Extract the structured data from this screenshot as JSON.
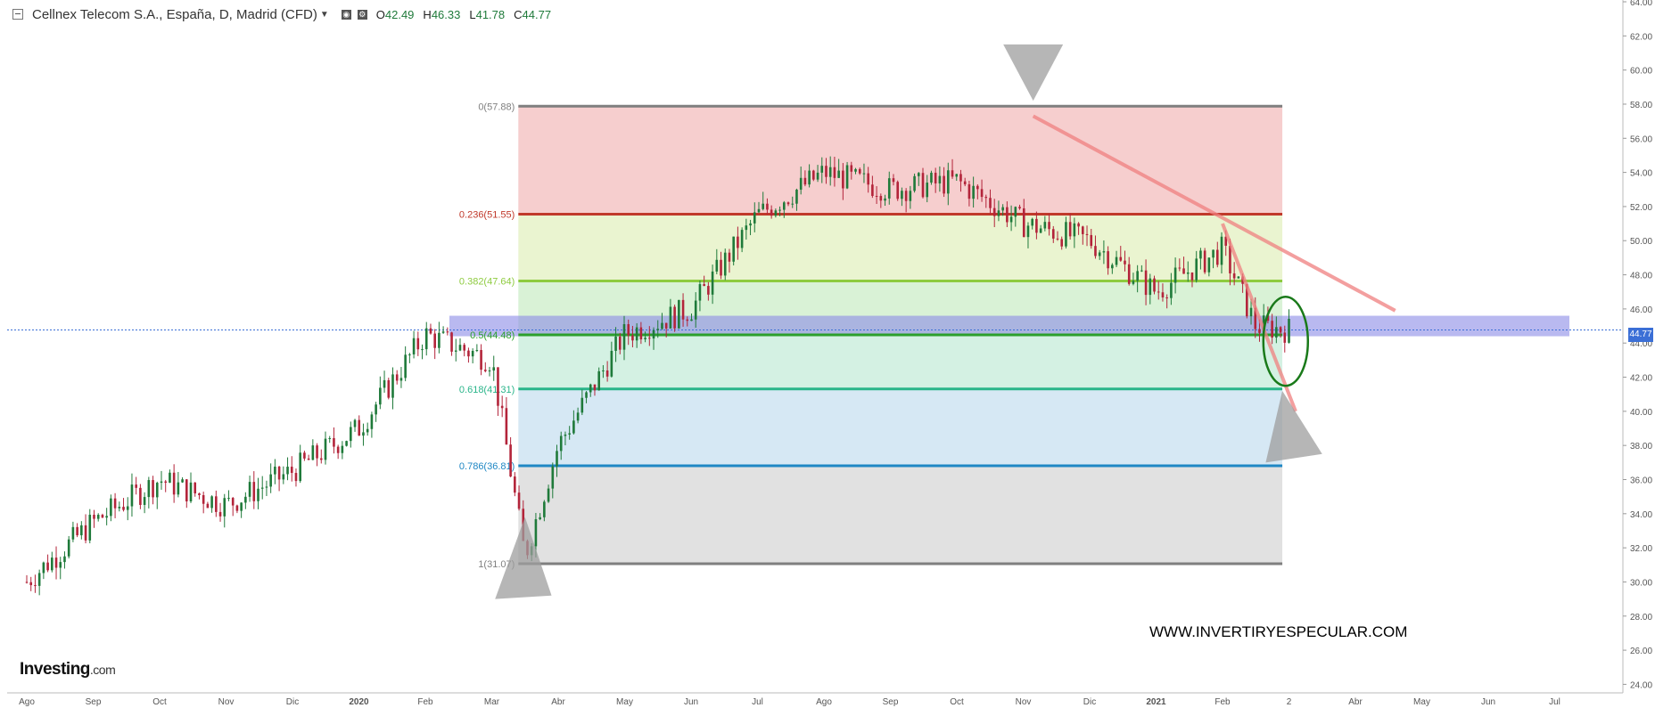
{
  "header": {
    "title": "Cellnex Telecom S.A., España, D, Madrid (CFD)",
    "open_label": "O",
    "open": "42.49",
    "high_label": "H",
    "high": "46.33",
    "low_label": "L",
    "low": "41.78",
    "close_label": "C",
    "close": "44.77"
  },
  "branding": {
    "name": "Investing",
    "suffix": ".com"
  },
  "watermark": "WWW.INVERTIRYESPECULAR.COM",
  "current_price_label": "44.77",
  "colors": {
    "up": "#1f7a3a",
    "down": "#b3243a",
    "band": "#8a8ae6",
    "fib0": "#7f7f7f",
    "fib236": "#c0392b",
    "fib382": "#8ecb3f",
    "fib5": "#2ca02c",
    "fib618": "#2ab58a",
    "fib786": "#1f87c4",
    "fib1": "#7f7f7f",
    "trend": "#f08080",
    "circle": "#1a7a1a"
  },
  "chart_data": {
    "type": "candlestick",
    "title": "Cellnex Telecom S.A., España, D, Madrid (CFD)",
    "ylim": [
      23.5,
      64
    ],
    "y_ticks": [
      "64.00",
      "62.00",
      "60.00",
      "58.00",
      "56.00",
      "54.00",
      "52.00",
      "50.00",
      "48.00",
      "46.00",
      "44.00",
      "42.00",
      "40.00",
      "38.00",
      "36.00",
      "34.00",
      "32.00",
      "30.00",
      "28.00",
      "26.00",
      "24.00"
    ],
    "x_ticks": [
      "Ago",
      "Sep",
      "Oct",
      "Nov",
      "Dic",
      "2020",
      "Feb",
      "Mar",
      "Abr",
      "May",
      "Jun",
      "Jul",
      "Ago",
      "Sep",
      "Oct",
      "Nov",
      "Dic",
      "2021",
      "Feb",
      "2",
      "Abr",
      "May",
      "Jun",
      "Jul"
    ],
    "x_tick_index": [
      0,
      1,
      2,
      3,
      4,
      5,
      6,
      7,
      8,
      9,
      10,
      11,
      12,
      13,
      14,
      15,
      16,
      17,
      18,
      19,
      20,
      21,
      22,
      23
    ],
    "price_path_months": [
      0,
      1,
      2,
      3,
      4,
      5,
      6,
      7,
      7.5,
      8,
      9,
      10,
      11,
      12,
      13,
      14,
      15,
      16,
      17,
      18,
      18.5,
      19
    ],
    "price_path_values": [
      30,
      33.5,
      36,
      34.5,
      36.5,
      39,
      44.5,
      43,
      31.5,
      38,
      44.5,
      46,
      51.5,
      54,
      53,
      53.5,
      51,
      50,
      47,
      49.5,
      45,
      44.77
    ],
    "fibonacci": [
      {
        "label": "0(57.88)",
        "level": 57.88
      },
      {
        "label": "0.236(51.55)",
        "level": 51.55
      },
      {
        "label": "0.382(47.64)",
        "level": 47.64
      },
      {
        "label": "0.5(44.48)",
        "level": 44.48
      },
      {
        "label": "0.618(41.31)",
        "level": 41.31
      },
      {
        "label": "0.786(36.81)",
        "level": 36.81
      },
      {
        "label": "1(31.07)",
        "level": 31.07
      }
    ],
    "fib_range_months": [
      7.4,
      18.9
    ],
    "resistance_band": {
      "low": 44.4,
      "high": 45.6
    },
    "last_close": 44.77
  }
}
